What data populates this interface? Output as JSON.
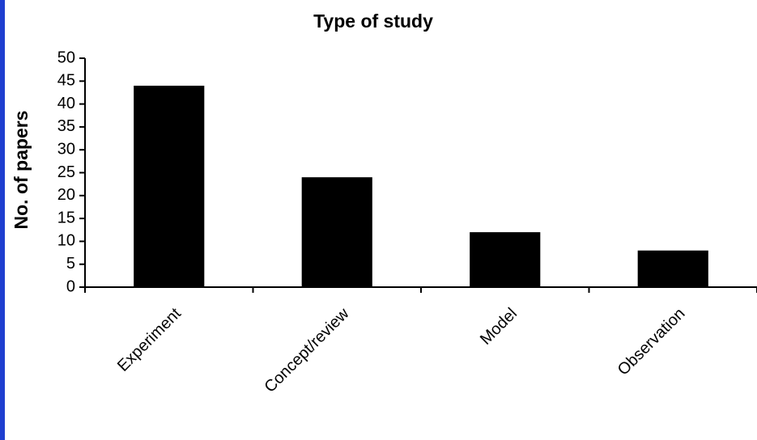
{
  "chart_data": {
    "type": "bar",
    "title": "Type of study",
    "y_label": "No. of papers",
    "categories": [
      "Experiment",
      "Concept/review",
      "Model",
      "Observation"
    ],
    "values": [
      44,
      24,
      12,
      8
    ],
    "color": "#000000",
    "ylim": [
      0,
      50
    ],
    "yticks": [
      0,
      5,
      10,
      15,
      20,
      25,
      30,
      35,
      40,
      45,
      50
    ],
    "grid": false
  }
}
